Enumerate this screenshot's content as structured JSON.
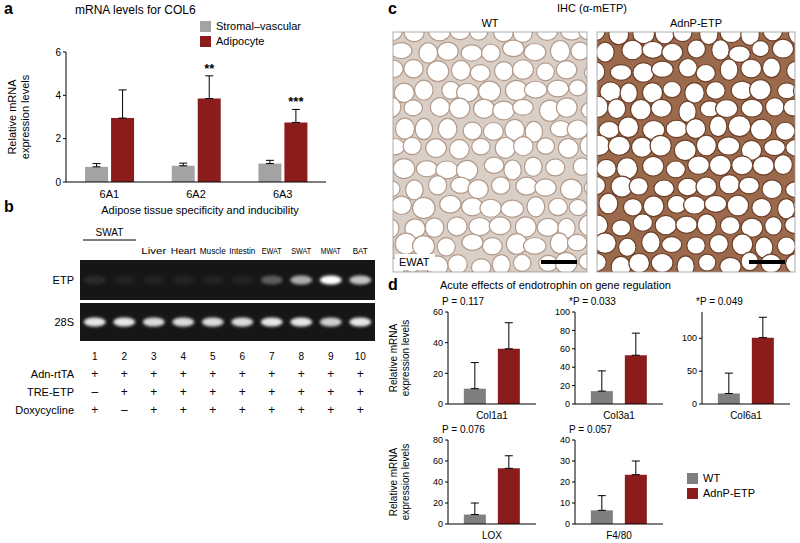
{
  "panel_labels": [
    "a",
    "b",
    "c",
    "d"
  ],
  "chart_data": [
    {
      "type": "bar",
      "title": "mRNA levels for COL6",
      "y_label": "Relative mRNA expression levels",
      "categories": [
        "6A1",
        "6A2",
        "6A3"
      ],
      "series": [
        {
          "name": "Stromal–vascular",
          "color": "#a3a3a3",
          "values": [
            0.7,
            0.75,
            0.85
          ],
          "errors": [
            0.15,
            0.12,
            0.15
          ]
        },
        {
          "name": "Adipocyte",
          "color": "#8b1c1c",
          "values": [
            2.95,
            3.85,
            2.75
          ],
          "errors": [
            1.3,
            1.05,
            0.6
          ],
          "annotations": [
            null,
            "**",
            "***"
          ]
        }
      ],
      "ylim": [
        0,
        6
      ],
      "yticks": [
        0,
        2,
        4,
        6
      ],
      "legend": "top-right"
    },
    {
      "type": "bar",
      "y_label": "Relative mRNA expression levels",
      "annotation": "P = 0.117",
      "categories": [
        "Col1a1"
      ],
      "series": [
        {
          "name": "WT",
          "color": "#7f7f7f",
          "values": [
            10
          ],
          "errors": [
            17
          ]
        },
        {
          "name": "AdnP-ETP",
          "color": "#8b1c1c",
          "values": [
            36
          ],
          "errors": [
            17
          ]
        }
      ],
      "ylim": [
        0,
        60
      ],
      "yticks": [
        0,
        20,
        40,
        60
      ]
    },
    {
      "type": "bar",
      "annotation": "*P = 0.033",
      "categories": [
        "Col3a1"
      ],
      "series": [
        {
          "name": "WT",
          "color": "#7f7f7f",
          "values": [
            14
          ],
          "errors": [
            22
          ]
        },
        {
          "name": "AdnP-ETP",
          "color": "#8b1c1c",
          "values": [
            53
          ],
          "errors": [
            24
          ]
        }
      ],
      "ylim": [
        0,
        100
      ],
      "yticks": [
        0,
        20,
        40,
        60,
        80,
        100
      ]
    },
    {
      "type": "bar",
      "annotation": "*P = 0.049",
      "categories": [
        "Col6a1"
      ],
      "series": [
        {
          "name": "WT",
          "color": "#7f7f7f",
          "values": [
            16
          ],
          "errors": [
            31
          ]
        },
        {
          "name": "AdnP-ETP",
          "color": "#8b1c1c",
          "values": [
            101
          ],
          "errors": [
            31
          ]
        }
      ],
      "ylim": [
        0,
        140
      ],
      "yticks": [
        0,
        50,
        100
      ]
    },
    {
      "type": "bar",
      "y_label": "Relative mRNA expression levels",
      "annotation": "P = 0.076",
      "categories": [
        "LOX"
      ],
      "series": [
        {
          "name": "WT",
          "color": "#7f7f7f",
          "values": [
            9
          ],
          "errors": [
            11
          ]
        },
        {
          "name": "AdnP-ETP",
          "color": "#8b1c1c",
          "values": [
            53
          ],
          "errors": [
            12
          ]
        }
      ],
      "ylim": [
        0,
        80
      ],
      "yticks": [
        0,
        20,
        40,
        60,
        80
      ]
    },
    {
      "type": "bar",
      "annotation": "P = 0.057",
      "categories": [
        "F4/80"
      ],
      "series": [
        {
          "name": "WT",
          "color": "#7f7f7f",
          "values": [
            6.5
          ],
          "errors": [
            7
          ]
        },
        {
          "name": "AdnP-ETP",
          "color": "#8b1c1c",
          "values": [
            23.5
          ],
          "errors": [
            6.5
          ]
        }
      ],
      "ylim": [
        0,
        40
      ],
      "yticks": [
        0,
        10,
        20,
        30,
        40
      ],
      "legend": "right"
    }
  ],
  "panel_b": {
    "title": "Adipose tissue specificity and inducibility",
    "lane_labels": [
      {
        "text": "SWAT",
        "lanes": [
          1,
          2
        ]
      },
      {
        "text": "Liver",
        "lanes": [
          3
        ]
      },
      {
        "text": "Heart",
        "lanes": [
          4
        ]
      },
      {
        "text": "Muscle",
        "lanes": [
          5
        ]
      },
      {
        "text": "Intestin",
        "lanes": [
          6
        ]
      },
      {
        "text": "EWAT",
        "lanes": [
          7
        ]
      },
      {
        "text": "SWAT",
        "lanes": [
          8
        ]
      },
      {
        "text": "MWAT",
        "lanes": [
          9
        ]
      },
      {
        "text": "BAT",
        "lanes": [
          10
        ]
      }
    ],
    "gel_rows": [
      {
        "label": "ETP",
        "intensity": [
          0.08,
          0.05,
          0.05,
          0.05,
          0.05,
          0.05,
          0.3,
          0.65,
          1,
          0.75
        ]
      },
      {
        "label": "28S",
        "intensity": [
          0.9,
          0.9,
          0.85,
          0.85,
          0.85,
          0.85,
          0.9,
          0.9,
          0.8,
          0.9
        ]
      }
    ],
    "lanes": [
      1,
      2,
      3,
      4,
      5,
      6,
      7,
      8,
      9,
      10
    ],
    "conditions": [
      {
        "label": "Adn-rtTA",
        "values": [
          "+",
          "+",
          "+",
          "+",
          "+",
          "+",
          "+",
          "+",
          "+",
          "+"
        ]
      },
      {
        "label": "TRE-ETP",
        "values": [
          "–",
          "+",
          "+",
          "+",
          "+",
          "+",
          "+",
          "+",
          "+",
          "+"
        ]
      },
      {
        "label": "Doxycycline",
        "values": [
          "+",
          "–",
          "+",
          "+",
          "+",
          "+",
          "+",
          "+",
          "+",
          "+"
        ]
      }
    ]
  },
  "panel_c": {
    "title": "IHC (α-mETP)",
    "images": [
      "WT",
      "AdnP-ETP"
    ],
    "tissue": "EWAT"
  },
  "panel_d": {
    "title": "Acute effects of endotrophin on gene regulation"
  }
}
